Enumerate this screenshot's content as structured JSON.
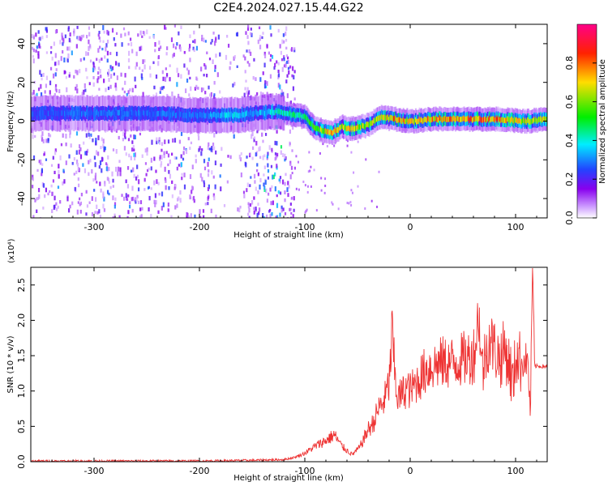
{
  "title": "C2E4.2024.027.15.44.G22",
  "chart_data": [
    {
      "type": "heatmap",
      "xlabel": "Height of straight line (km)",
      "ylabel": "Frequency (Hz)",
      "xlim": [
        -360,
        130
      ],
      "ylim": [
        -50,
        50
      ],
      "xticks": [
        -300,
        -200,
        -100,
        0,
        100
      ],
      "yticks": [
        40,
        20,
        0,
        -20,
        -40
      ],
      "grid": false,
      "colorbar": {
        "label": "Normalized spectral amplitude",
        "range": [
          0.0,
          1.0
        ],
        "ticks": [
          "0.0",
          "0.2",
          "0.4",
          "0.6",
          "0.8"
        ],
        "colors": [
          "#ffffff",
          "#cc99ff",
          "#8800ee",
          "#2244ff",
          "#00eeff",
          "#00ee00",
          "#ffdd00",
          "#ff2200",
          "#ff0088"
        ]
      },
      "ridge": [
        {
          "x": -350,
          "f": 4,
          "amp": 0.28
        },
        {
          "x": -300,
          "f": 4,
          "amp": 0.32
        },
        {
          "x": -250,
          "f": 4,
          "amp": 0.3
        },
        {
          "x": -200,
          "f": 3,
          "amp": 0.3
        },
        {
          "x": -165,
          "f": 3,
          "amp": 0.42
        },
        {
          "x": -150,
          "f": 4,
          "amp": 0.35
        },
        {
          "x": -125,
          "f": 5,
          "amp": 0.45
        },
        {
          "x": -100,
          "f": 2,
          "amp": 0.5
        },
        {
          "x": -90,
          "f": -4,
          "amp": 0.6
        },
        {
          "x": -75,
          "f": -6,
          "amp": 0.8
        },
        {
          "x": -65,
          "f": -3,
          "amp": 0.7
        },
        {
          "x": -55,
          "f": -4,
          "amp": 0.75
        },
        {
          "x": -40,
          "f": -2,
          "amp": 0.65
        },
        {
          "x": -30,
          "f": 2,
          "amp": 0.7
        },
        {
          "x": -15,
          "f": 1,
          "amp": 0.85
        },
        {
          "x": 0,
          "f": 0,
          "amp": 0.75
        },
        {
          "x": 20,
          "f": 1,
          "amp": 0.8
        },
        {
          "x": 50,
          "f": 1,
          "amp": 0.85
        },
        {
          "x": 80,
          "f": 1,
          "amp": 0.85
        },
        {
          "x": 110,
          "f": 0,
          "amp": 0.7
        },
        {
          "x": 130,
          "f": 1,
          "amp": 0.75
        }
      ]
    },
    {
      "type": "line",
      "xlabel": "Height of straight line (km)",
      "ylabel": "SNR (10 * v/v)",
      "yscale_label": "(x10⁴)",
      "xlim": [
        -360,
        130
      ],
      "ylim": [
        0,
        2.75
      ],
      "xticks": [
        -300,
        -200,
        -100,
        0,
        100
      ],
      "yticks": [
        "0.0",
        "0.5",
        "1.0",
        "1.5",
        "2.0",
        "2.5"
      ],
      "grid": false,
      "color": "#ee3333",
      "series": [
        {
          "x": [
            -360,
            -300,
            -200,
            -150,
            -120,
            -110,
            -100,
            -90,
            -80,
            -72,
            -65,
            -55,
            -48,
            -40,
            -35,
            -30,
            -25,
            -20,
            -17,
            -15,
            -12,
            -8,
            -3,
            0,
            5,
            10,
            15,
            20,
            30,
            40,
            50,
            60,
            62,
            65,
            68,
            70,
            75,
            80,
            85,
            90,
            95,
            98,
            100,
            105,
            110,
            112,
            114,
            116,
            118,
            120,
            125,
            130
          ],
          "y": [
            0.01,
            0.01,
            0.01,
            0.02,
            0.03,
            0.06,
            0.12,
            0.22,
            0.3,
            0.38,
            0.22,
            0.1,
            0.2,
            0.45,
            0.55,
            0.75,
            0.85,
            1.1,
            1.85,
            1.3,
            0.9,
            0.95,
            1.05,
            1.0,
            1.1,
            1.2,
            1.3,
            1.35,
            1.4,
            1.4,
            1.45,
            1.5,
            1.65,
            2.15,
            1.3,
            1.4,
            1.75,
            1.6,
            1.45,
            1.6,
            1.3,
            1.05,
            1.55,
            1.4,
            1.45,
            1.35,
            0.65,
            2.75,
            1.35,
            1.35,
            1.35,
            1.35
          ]
        }
      ]
    }
  ]
}
